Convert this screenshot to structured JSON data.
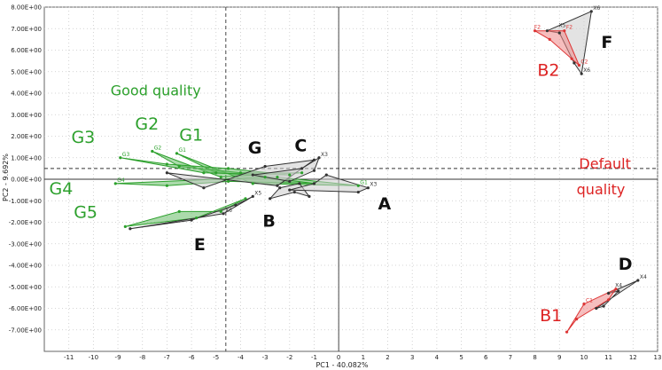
{
  "chart_data": {
    "type": "scatter",
    "xlabel": "PC1 - 40.082%",
    "ylabel": "PC2 - 9.692%",
    "xlim": [
      -12,
      13
    ],
    "ylim": [
      -8,
      8
    ],
    "x_ticks": [
      -11,
      -10,
      -9,
      -8,
      -7,
      -6,
      -5,
      -4,
      -3,
      -2,
      -1,
      0,
      1,
      2,
      3,
      4,
      5,
      6,
      7,
      8,
      9,
      10,
      11,
      12,
      13
    ],
    "x_tick_labels": [
      "-11",
      "-10",
      "-9",
      "-8",
      "-7",
      "-6",
      "-5",
      "-4",
      "-3",
      "-2",
      "-1",
      "0",
      "1",
      "2",
      "3",
      "4",
      "5",
      "6",
      "7",
      "8",
      "9",
      "10",
      "11",
      "12",
      "13"
    ],
    "y_ticks": [
      8,
      7,
      6,
      5,
      4,
      3,
      2,
      1,
      0,
      -1,
      -2,
      -3,
      -4,
      -5,
      -6,
      -7
    ],
    "y_tick_labels": [
      "8.00E+00",
      "7.00E+00",
      "6.00E+00",
      "5.00E+00",
      "4.00E+00",
      "3.00E+00",
      "2.00E+00",
      "1.00E+00",
      "0.00E+00",
      "-1.00E+00",
      "-2.00E+00",
      "-3.00E+00",
      "-4.00E+00",
      "-5.00E+00",
      "-6.00E+00",
      "-7.00E+00"
    ],
    "grid": true,
    "reference_lines": {
      "vertical_dashed_x": -4.6,
      "horizontal_dashed_y": 0.5
    },
    "groups": [
      {
        "label": "G1",
        "color": "#2ca02c",
        "fill": "#66bb66",
        "points": [
          [
            -6.6,
            1.2
          ],
          [
            -5.0,
            0.3
          ],
          [
            -2.5,
            0.1
          ],
          [
            0.8,
            -0.3
          ],
          [
            -3.5,
            -0.2
          ]
        ]
      },
      {
        "label": "G2",
        "color": "#2ca02c",
        "fill": "#66bb66",
        "points": [
          [
            -7.6,
            1.3
          ],
          [
            -6.5,
            0.6
          ],
          [
            -4.0,
            0.3
          ],
          [
            -1.5,
            0.3
          ],
          [
            -4.8,
            0.1
          ]
        ]
      },
      {
        "label": "G3",
        "color": "#2ca02c",
        "fill": "#66bb66",
        "points": [
          [
            -8.9,
            1.0
          ],
          [
            -7.0,
            0.7
          ],
          [
            -4.5,
            0.5
          ],
          [
            -2.0,
            0.2
          ],
          [
            -5.5,
            0.3
          ]
        ]
      },
      {
        "label": "G4",
        "color": "#2ca02c",
        "fill": "#66bb66",
        "points": [
          [
            -9.1,
            -0.2
          ],
          [
            -7.0,
            -0.3
          ],
          [
            -4.5,
            -0.1
          ],
          [
            -1.0,
            -0.2
          ],
          [
            -3.0,
            0.1
          ]
        ]
      },
      {
        "label": "G5",
        "color": "#2ca02c",
        "fill": "#66bb66",
        "points": [
          [
            -8.7,
            -2.2
          ],
          [
            -6.5,
            -1.5
          ],
          [
            -4.8,
            -1.5
          ],
          [
            -3.8,
            -0.9
          ],
          [
            -5.8,
            -1.8
          ]
        ]
      },
      {
        "label": "G",
        "color": "#333333",
        "fill": "#cccccc",
        "points": [
          [
            -7.0,
            0.3
          ],
          [
            -5.5,
            -0.4
          ],
          [
            -3.0,
            0.6
          ],
          [
            -1.0,
            0.9
          ],
          [
            -2.5,
            -0.3
          ]
        ]
      },
      {
        "label": "C",
        "color": "#333333",
        "fill": "#cccccc",
        "points": [
          [
            -3.5,
            0.2
          ],
          [
            -1.5,
            0.5
          ],
          [
            -0.8,
            1.0
          ],
          [
            -1.0,
            0.4
          ],
          [
            -2.0,
            -0.1
          ]
        ]
      },
      {
        "label": "B",
        "color": "#333333",
        "fill": "#cccccc",
        "points": [
          [
            -2.8,
            -0.9
          ],
          [
            -1.8,
            -0.6
          ],
          [
            -1.2,
            -0.8
          ],
          [
            -1.6,
            -0.2
          ],
          [
            -2.4,
            -0.4
          ]
        ]
      },
      {
        "label": "A",
        "color": "#333333",
        "fill": "#cccccc",
        "points": [
          [
            -2.0,
            -0.5
          ],
          [
            0.8,
            -0.6
          ],
          [
            1.2,
            -0.4
          ],
          [
            -0.5,
            0.2
          ],
          [
            -1.0,
            -0.2
          ]
        ]
      },
      {
        "label": "E",
        "color": "#333333",
        "fill": "#cccccc",
        "points": [
          [
            -8.5,
            -2.3
          ],
          [
            -4.7,
            -1.6
          ],
          [
            -3.5,
            -0.8
          ],
          [
            -4.2,
            -1.2
          ],
          [
            -6.0,
            -1.9
          ]
        ]
      },
      {
        "label": "F",
        "color": "#333333",
        "fill": "#cccccc",
        "points": [
          [
            8.5,
            6.9
          ],
          [
            10.3,
            7.8
          ],
          [
            9.9,
            4.9
          ],
          [
            9.6,
            5.4
          ],
          [
            9.0,
            6.8
          ]
        ]
      },
      {
        "label": "B2",
        "color": "#dd3333",
        "fill": "#ee8888",
        "points": [
          [
            8.0,
            6.9
          ],
          [
            9.2,
            6.9
          ],
          [
            9.8,
            5.3
          ],
          [
            9.5,
            5.6
          ],
          [
            8.6,
            6.5
          ]
        ]
      },
      {
        "label": "D",
        "color": "#333333",
        "fill": "#cccccc",
        "points": [
          [
            10.5,
            -6.0
          ],
          [
            12.2,
            -4.7
          ],
          [
            11.0,
            -5.3
          ],
          [
            11.4,
            -5.2
          ],
          [
            10.8,
            -5.9
          ]
        ]
      },
      {
        "label": "B1",
        "color": "#dd3333",
        "fill": "#ee8888",
        "points": [
          [
            9.3,
            -7.1
          ],
          [
            10.0,
            -5.8
          ],
          [
            11.3,
            -5.1
          ],
          [
            11.0,
            -5.6
          ],
          [
            9.7,
            -6.5
          ]
        ]
      }
    ],
    "point_labels": [
      {
        "text": "G1",
        "x": -6.6,
        "y": 1.2,
        "color": "#2ca02c"
      },
      {
        "text": "G2",
        "x": -7.6,
        "y": 1.3,
        "color": "#2ca02c"
      },
      {
        "text": "G3",
        "x": -8.9,
        "y": 1.0,
        "color": "#2ca02c"
      },
      {
        "text": "G4",
        "x": -9.1,
        "y": -0.2,
        "color": "#2ca02c"
      },
      {
        "text": "G1",
        "x": 0.8,
        "y": -0.3,
        "color": "#2ca02c"
      },
      {
        "text": "X6",
        "x": 10.3,
        "y": 7.8,
        "color": "#333333"
      },
      {
        "text": "X5",
        "x": 8.9,
        "y": 7.0,
        "color": "#333333"
      },
      {
        "text": "X6",
        "x": 9.9,
        "y": 4.9,
        "color": "#333333"
      },
      {
        "text": "X3",
        "x": 1.2,
        "y": -0.4,
        "color": "#333333"
      },
      {
        "text": "X3",
        "x": -0.8,
        "y": 1.0,
        "color": "#333333"
      },
      {
        "text": "X5",
        "x": -3.5,
        "y": -0.8,
        "color": "#333333"
      },
      {
        "text": "X6",
        "x": -4.7,
        "y": -1.6,
        "color": "#333333"
      },
      {
        "text": "X4",
        "x": 12.2,
        "y": -4.7,
        "color": "#333333"
      },
      {
        "text": "X4",
        "x": 11.2,
        "y": -5.1,
        "color": "#333333"
      },
      {
        "text": "F2",
        "x": 7.9,
        "y": 6.9,
        "color": "#dd3333"
      },
      {
        "text": "F2",
        "x": 9.2,
        "y": 6.9,
        "color": "#dd3333"
      },
      {
        "text": "C2",
        "x": 9.8,
        "y": 5.3,
        "color": "#dd3333"
      },
      {
        "text": "C1",
        "x": 10.0,
        "y": -5.8,
        "color": "#dd3333"
      }
    ],
    "annotations": [
      {
        "text": "Good quality",
        "x": -9.3,
        "y": 3.9,
        "color": "#2ca02c",
        "size": 16
      },
      {
        "text": "G1",
        "x": -6.5,
        "y": 1.8,
        "color": "#2ca02c",
        "size": 19
      },
      {
        "text": "G2",
        "x": -8.3,
        "y": 2.3,
        "color": "#2ca02c",
        "size": 19
      },
      {
        "text": "G3",
        "x": -10.9,
        "y": 1.7,
        "color": "#2ca02c",
        "size": 19
      },
      {
        "text": "G4",
        "x": -11.8,
        "y": -0.7,
        "color": "#2ca02c",
        "size": 19
      },
      {
        "text": "G5",
        "x": -10.8,
        "y": -1.8,
        "color": "#2ca02c",
        "size": 19
      },
      {
        "text": "G",
        "x": -3.7,
        "y": 1.2,
        "color": "#111111",
        "size": 19
      },
      {
        "text": "C",
        "x": -1.8,
        "y": 1.3,
        "color": "#111111",
        "size": 19
      },
      {
        "text": "B",
        "x": -3.1,
        "y": -2.2,
        "color": "#111111",
        "size": 19
      },
      {
        "text": "A",
        "x": 1.6,
        "y": -1.4,
        "color": "#111111",
        "size": 19
      },
      {
        "text": "E",
        "x": -5.9,
        "y": -3.3,
        "color": "#111111",
        "size": 19
      },
      {
        "text": "F",
        "x": 10.7,
        "y": 6.1,
        "color": "#111111",
        "size": 19
      },
      {
        "text": "B2",
        "x": 8.1,
        "y": 4.8,
        "color": "#dd2222",
        "size": 19
      },
      {
        "text": "Default",
        "x": 9.8,
        "y": 0.5,
        "color": "#dd2222",
        "size": 16
      },
      {
        "text": "quality",
        "x": 9.7,
        "y": -0.7,
        "color": "#dd2222",
        "size": 16
      },
      {
        "text": "D",
        "x": 11.4,
        "y": -4.2,
        "color": "#111111",
        "size": 19
      },
      {
        "text": "B1",
        "x": 8.2,
        "y": -6.6,
        "color": "#dd2222",
        "size": 19
      }
    ]
  }
}
